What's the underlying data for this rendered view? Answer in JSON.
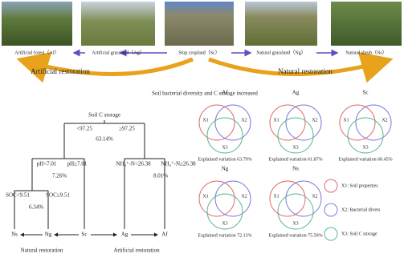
{
  "photos": [
    {
      "label": "Artificial forest（Af）"
    },
    {
      "label": "Artificial grassland（Ag）"
    },
    {
      "label": "Slop cropland（Sc）"
    },
    {
      "label": "Natural grassland（Ng）"
    },
    {
      "label": "Natural shrub（Ns）"
    }
  ],
  "restoration": {
    "left": "Artificial restoration",
    "right": "Natural restoration"
  },
  "headline": "Soil bacterial diversity and C storage increased",
  "tree": {
    "root": "Soil C storage",
    "split1": {
      "left": "<97.25",
      "right": "≥97.25",
      "value": "63.14%"
    },
    "split2": {
      "left": "pH<7.01",
      "right": "pH≥7.01",
      "value": "7.26%"
    },
    "split3": {
      "left": "NH₄⁺-N<26.38",
      "right": "NH₄⁺-N≥26.38",
      "value": "8.01%"
    },
    "split4": {
      "left": "SOC<9.51",
      "right": "SOC≥9.51",
      "value": "6.34%"
    },
    "leaves": [
      "Ns",
      "Ng",
      "Sc",
      "Ag",
      "Af"
    ],
    "groups": [
      "Natural restoration",
      "Artificial restoration"
    ]
  },
  "venn": {
    "panels": [
      {
        "title": "Af",
        "explained": "Explained variation 63.79%"
      },
      {
        "title": "Ag",
        "explained": "Explained variation 61.87%"
      },
      {
        "title": "Sc",
        "explained": "Explained variation 60.45%"
      },
      {
        "title": "Ng",
        "explained": "Explained variation 72.13%"
      },
      {
        "title": "Ns",
        "explained": "Explained variation 75.59%"
      }
    ],
    "set_labels": [
      "X1",
      "X2",
      "X3"
    ],
    "legend": [
      "X1: Soil properties",
      "X2: Bacterial divers",
      "X3: Soil C storage"
    ]
  }
}
